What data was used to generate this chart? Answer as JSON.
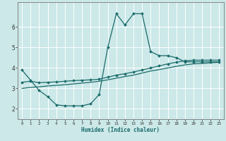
{
  "bg_color": "#cce8e8",
  "grid_color": "#ffffff",
  "line_color": "#1a6b6b",
  "xlabel": "Humidex (Indice chaleur)",
  "xlim": [
    -0.5,
    23.5
  ],
  "ylim": [
    1.5,
    7.2
  ],
  "yticks": [
    2,
    3,
    4,
    5,
    6
  ],
  "xticks": [
    0,
    1,
    2,
    3,
    4,
    5,
    6,
    7,
    8,
    9,
    10,
    11,
    12,
    13,
    14,
    15,
    16,
    17,
    18,
    19,
    20,
    21,
    22,
    23
  ],
  "line1_x": [
    0,
    1,
    2,
    3,
    4,
    5,
    6,
    7,
    8,
    9,
    10,
    11,
    12,
    13,
    14,
    15,
    16,
    17,
    18,
    19,
    20,
    21,
    22,
    23
  ],
  "line1_y": [
    3.9,
    3.4,
    2.9,
    2.6,
    2.2,
    2.15,
    2.15,
    2.15,
    2.25,
    2.7,
    5.0,
    6.65,
    6.1,
    6.65,
    6.65,
    4.8,
    4.6,
    4.6,
    4.5,
    4.3,
    4.3,
    4.3,
    4.3,
    4.3
  ],
  "line2_x": [
    0,
    1,
    2,
    3,
    4,
    5,
    6,
    7,
    8,
    9,
    10,
    11,
    12,
    13,
    14,
    15,
    16,
    17,
    18,
    19,
    20,
    21,
    22,
    23
  ],
  "line2_y": [
    3.3,
    3.35,
    3.28,
    3.3,
    3.32,
    3.35,
    3.38,
    3.4,
    3.42,
    3.45,
    3.55,
    3.65,
    3.72,
    3.8,
    3.9,
    4.0,
    4.1,
    4.2,
    4.28,
    4.35,
    4.38,
    4.38,
    4.38,
    4.38
  ],
  "line3_x": [
    0,
    1,
    2,
    3,
    4,
    5,
    6,
    7,
    8,
    9,
    10,
    11,
    12,
    13,
    14,
    15,
    16,
    17,
    18,
    19,
    20,
    21,
    22,
    23
  ],
  "line3_y": [
    3.0,
    3.05,
    3.08,
    3.12,
    3.15,
    3.18,
    3.22,
    3.26,
    3.3,
    3.35,
    3.42,
    3.5,
    3.58,
    3.65,
    3.75,
    3.85,
    3.92,
    4.0,
    4.08,
    4.15,
    4.2,
    4.22,
    4.25,
    4.28
  ]
}
